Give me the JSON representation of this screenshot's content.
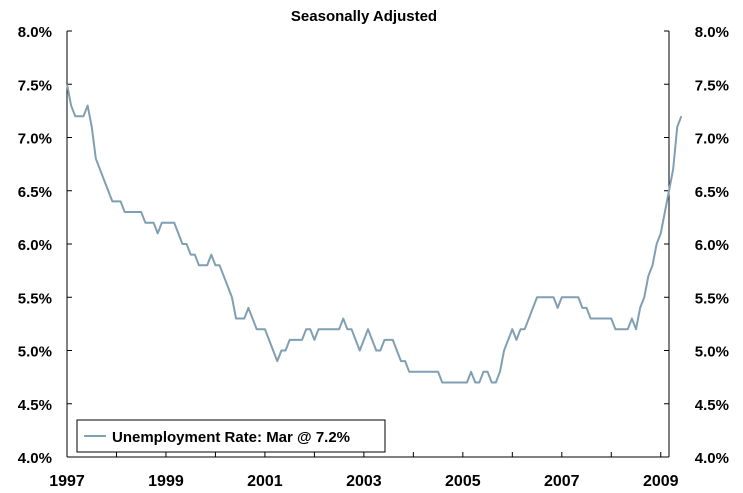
{
  "chart_data": {
    "type": "line",
    "title": "",
    "subtitle": "Seasonally Adjusted",
    "xlabel": "",
    "ylabel": "",
    "ylim": [
      4.0,
      8.0
    ],
    "y_ticks": [
      "4.0%",
      "4.5%",
      "5.0%",
      "5.5%",
      "6.0%",
      "6.5%",
      "7.0%",
      "7.5%",
      "8.0%"
    ],
    "x_ticks": [
      "1997",
      "1999",
      "2001",
      "2003",
      "2005",
      "2007",
      "2009"
    ],
    "x_start": "1997-01",
    "x_end": "2009-03",
    "grid": false,
    "legend_position": "bottom-left",
    "series": [
      {
        "name": "Unemployment Rate: Mar @ 7.2%",
        "color": "#7f9fb3",
        "values": [
          7.5,
          7.3,
          7.2,
          7.2,
          7.2,
          7.3,
          7.1,
          6.8,
          6.7,
          6.6,
          6.5,
          6.4,
          6.4,
          6.4,
          6.3,
          6.3,
          6.3,
          6.3,
          6.3,
          6.2,
          6.2,
          6.2,
          6.1,
          6.2,
          6.2,
          6.2,
          6.2,
          6.1,
          6.0,
          6.0,
          5.9,
          5.9,
          5.8,
          5.8,
          5.8,
          5.9,
          5.8,
          5.8,
          5.7,
          5.6,
          5.5,
          5.3,
          5.3,
          5.3,
          5.4,
          5.3,
          5.2,
          5.2,
          5.2,
          5.1,
          5.0,
          4.9,
          5.0,
          5.0,
          5.1,
          5.1,
          5.1,
          5.1,
          5.2,
          5.2,
          5.1,
          5.2,
          5.2,
          5.2,
          5.2,
          5.2,
          5.2,
          5.3,
          5.2,
          5.2,
          5.1,
          5.0,
          5.1,
          5.2,
          5.1,
          5.0,
          5.0,
          5.1,
          5.1,
          5.1,
          5.0,
          4.9,
          4.9,
          4.8,
          4.8,
          4.8,
          4.8,
          4.8,
          4.8,
          4.8,
          4.8,
          4.7,
          4.7,
          4.7,
          4.7,
          4.7,
          4.7,
          4.7,
          4.8,
          4.7,
          4.7,
          4.8,
          4.8,
          4.7,
          4.7,
          4.8,
          5.0,
          5.1,
          5.2,
          5.1,
          5.2,
          5.2,
          5.3,
          5.4,
          5.5,
          5.5,
          5.5,
          5.5,
          5.5,
          5.4,
          5.5,
          5.5,
          5.5,
          5.5,
          5.5,
          5.4,
          5.4,
          5.3,
          5.3,
          5.3,
          5.3,
          5.3,
          5.3,
          5.2,
          5.2,
          5.2,
          5.2,
          5.3,
          5.2,
          5.4,
          5.5,
          5.7,
          5.8,
          6.0,
          6.1,
          6.3,
          6.5,
          6.7,
          7.1,
          7.2
        ]
      }
    ]
  }
}
